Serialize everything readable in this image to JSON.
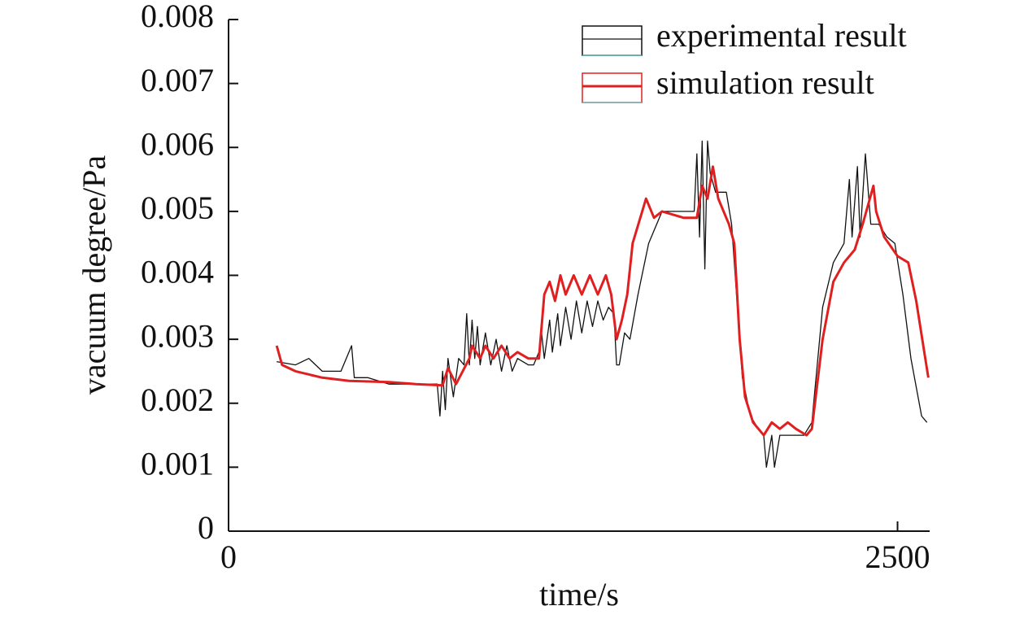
{
  "chart_data": {
    "type": "line",
    "x_label": "time/s",
    "y_label": "vacuum degree/Pa",
    "xlim": [
      0,
      2620
    ],
    "xticks": [
      0,
      2500
    ],
    "ylim": [
      0,
      0.008
    ],
    "yticks": [
      0,
      0.001,
      0.002,
      0.003,
      0.004,
      0.005,
      0.006,
      0.007,
      0.008
    ],
    "legend": "upper right",
    "series": [
      {
        "name": "experimental result",
        "color": "#111111",
        "x": [
          180,
          250,
          300,
          350,
          420,
          460,
          470,
          520,
          600,
          700,
          780,
          790,
          800,
          810,
          820,
          840,
          860,
          880,
          890,
          900,
          910,
          920,
          930,
          940,
          960,
          980,
          1000,
          1020,
          1040,
          1060,
          1080,
          1120,
          1140,
          1160,
          1170,
          1180,
          1200,
          1210,
          1230,
          1240,
          1260,
          1280,
          1300,
          1320,
          1340,
          1360,
          1380,
          1400,
          1420,
          1440,
          1450,
          1460,
          1480,
          1500,
          1530,
          1570,
          1600,
          1620,
          1680,
          1740,
          1750,
          1760,
          1770,
          1780,
          1790,
          1800,
          1820,
          1860,
          1880,
          1900,
          1920,
          1950,
          1980,
          2000,
          2010,
          2030,
          2040,
          2060,
          2100,
          2150,
          2180,
          2220,
          2260,
          2300,
          2320,
          2330,
          2350,
          2360,
          2380,
          2400,
          2430,
          2460,
          2490,
          2520,
          2550,
          2590,
          2610
        ],
        "values": [
          0.00265,
          0.0026,
          0.0027,
          0.0025,
          0.0025,
          0.0029,
          0.0024,
          0.0024,
          0.0023,
          0.0023,
          0.0023,
          0.0018,
          0.0025,
          0.0019,
          0.0027,
          0.0021,
          0.0027,
          0.0026,
          0.0034,
          0.0026,
          0.0033,
          0.0027,
          0.0032,
          0.0026,
          0.0031,
          0.0026,
          0.003,
          0.0025,
          0.0029,
          0.0025,
          0.0027,
          0.0026,
          0.0026,
          0.0028,
          0.0031,
          0.0027,
          0.0033,
          0.0028,
          0.0034,
          0.0029,
          0.0035,
          0.003,
          0.0036,
          0.0031,
          0.0036,
          0.0032,
          0.0036,
          0.0033,
          0.0035,
          0.0034,
          0.0026,
          0.0026,
          0.0031,
          0.003,
          0.0037,
          0.0045,
          0.0048,
          0.005,
          0.005,
          0.005,
          0.0059,
          0.0046,
          0.0061,
          0.0041,
          0.0061,
          0.0056,
          0.0053,
          0.0053,
          0.0048,
          0.0036,
          0.0024,
          0.0018,
          0.0016,
          0.0015,
          0.001,
          0.0015,
          0.001,
          0.0015,
          0.0015,
          0.0015,
          0.0017,
          0.0035,
          0.0042,
          0.0045,
          0.0055,
          0.0046,
          0.0057,
          0.0046,
          0.0059,
          0.0048,
          0.0048,
          0.0046,
          0.0045,
          0.0037,
          0.0027,
          0.0018,
          0.0017
        ]
      },
      {
        "name": "simulation result",
        "color": "#e02020",
        "x": [
          180,
          200,
          250,
          350,
          450,
          600,
          700,
          800,
          820,
          850,
          900,
          910,
          940,
          960,
          990,
          1020,
          1050,
          1080,
          1120,
          1160,
          1180,
          1200,
          1220,
          1240,
          1260,
          1290,
          1320,
          1350,
          1380,
          1410,
          1430,
          1450,
          1470,
          1490,
          1510,
          1560,
          1590,
          1620,
          1700,
          1750,
          1770,
          1790,
          1810,
          1830,
          1870,
          1890,
          1910,
          1930,
          1960,
          2000,
          2030,
          2060,
          2090,
          2120,
          2160,
          2180,
          2220,
          2260,
          2300,
          2340,
          2370,
          2390,
          2410,
          2420,
          2450,
          2500,
          2540,
          2570,
          2600,
          2615
        ],
        "values": [
          0.0029,
          0.0026,
          0.0025,
          0.0024,
          0.00235,
          0.00233,
          0.0023,
          0.00228,
          0.00255,
          0.0023,
          0.0027,
          0.0029,
          0.0027,
          0.0029,
          0.0027,
          0.0029,
          0.0027,
          0.0028,
          0.0027,
          0.0027,
          0.0037,
          0.0039,
          0.0036,
          0.004,
          0.0037,
          0.004,
          0.0037,
          0.004,
          0.0037,
          0.004,
          0.0037,
          0.003,
          0.0033,
          0.0037,
          0.0045,
          0.0052,
          0.0049,
          0.005,
          0.0049,
          0.0049,
          0.0054,
          0.0052,
          0.0057,
          0.0052,
          0.0048,
          0.0045,
          0.003,
          0.0021,
          0.0017,
          0.0015,
          0.0017,
          0.0016,
          0.0017,
          0.0016,
          0.0015,
          0.0016,
          0.003,
          0.0039,
          0.0042,
          0.0044,
          0.0048,
          0.0051,
          0.0054,
          0.005,
          0.0046,
          0.0043,
          0.0042,
          0.0036,
          0.0028,
          0.0024
        ]
      }
    ]
  }
}
